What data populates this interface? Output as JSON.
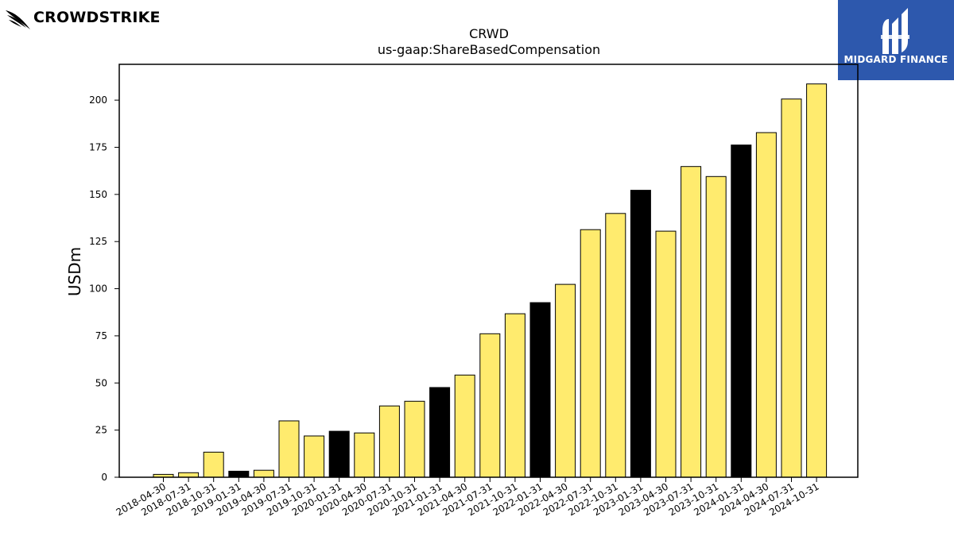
{
  "branding": {
    "left_logo_text": "CROWDSTRIKE",
    "right_logo_text": "MIDGARD FINANCE",
    "right_logo_bg": "#2d58ad"
  },
  "chart_data": {
    "type": "bar",
    "title": "CRWD",
    "subtitle": "us-gaap:ShareBasedCompensation",
    "xlabel": "",
    "ylabel": "USDm",
    "ylim": [
      0,
      219
    ],
    "yticks": [
      0,
      25,
      50,
      75,
      100,
      125,
      150,
      175,
      200
    ],
    "grid": false,
    "legend": "none",
    "colors": {
      "quarter": "#ffeb6e",
      "fiscal_year_end": "#000000",
      "edge": "#000000"
    },
    "categories": [
      "2018-04-30",
      "2018-07-31",
      "2018-10-31",
      "2019-01-31",
      "2019-04-30",
      "2019-07-31",
      "2019-10-31",
      "2020-01-31",
      "2020-04-30",
      "2020-07-31",
      "2020-10-31",
      "2021-01-31",
      "2021-04-30",
      "2021-07-31",
      "2021-10-31",
      "2022-01-31",
      "2022-04-30",
      "2022-07-31",
      "2022-10-31",
      "2023-01-31",
      "2023-04-30",
      "2023-07-31",
      "2023-10-31",
      "2024-01-31",
      "2024-04-30",
      "2024-07-31",
      "2024-10-31"
    ],
    "values": [
      1.5,
      2.4,
      13.3,
      3.2,
      3.7,
      29.9,
      21.9,
      24.4,
      23.5,
      37.8,
      40.3,
      47.6,
      54.2,
      76.1,
      86.7,
      92.6,
      102.3,
      131.3,
      139.9,
      152.2,
      130.5,
      164.8,
      159.5,
      176.2,
      182.8,
      200.6,
      208.6
    ],
    "highlight": [
      false,
      false,
      false,
      true,
      false,
      false,
      false,
      true,
      false,
      false,
      false,
      true,
      false,
      false,
      false,
      true,
      false,
      false,
      false,
      true,
      false,
      false,
      false,
      true,
      false,
      false,
      false
    ]
  }
}
